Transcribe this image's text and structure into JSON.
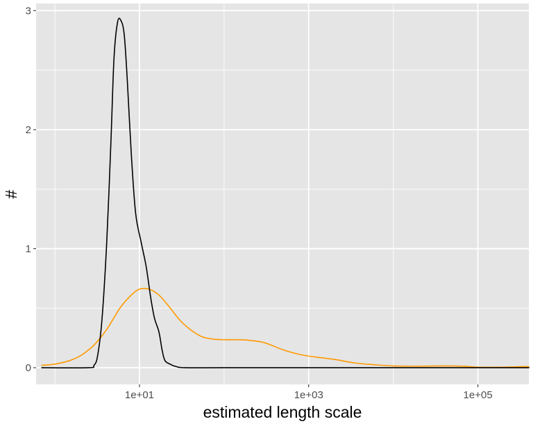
{
  "chart_data": {
    "type": "line",
    "title": "",
    "xlabel": "estimated length scale",
    "ylabel": "#",
    "x_scale": "log10",
    "xlim": [
      0.6,
      400000
    ],
    "ylim": [
      -0.14,
      3.06
    ],
    "x_ticks": [
      {
        "value": 10,
        "label": "1e+01"
      },
      {
        "value": 1000,
        "label": "1e+03"
      },
      {
        "value": 100000,
        "label": "1e+05"
      }
    ],
    "x_minor_ticks": [
      1,
      100,
      10000
    ],
    "y_ticks": [
      {
        "value": 0,
        "label": "0"
      },
      {
        "value": 1,
        "label": "1"
      },
      {
        "value": 2,
        "label": "2"
      },
      {
        "value": 3,
        "label": "3"
      }
    ],
    "y_minor_ticks": [
      0.5,
      1.5,
      2.5
    ],
    "grid": true,
    "legend": "none",
    "colors": {
      "panel_background": "#e5e5e5",
      "grid": "#ffffff",
      "tick_label": "#4d4d4d",
      "axis_title": "#000000"
    },
    "series": [
      {
        "color": "#ff9900",
        "points": [
          [
            0.7,
            0.02
          ],
          [
            1,
            0.03
          ],
          [
            1.5,
            0.06
          ],
          [
            2,
            0.1
          ],
          [
            2.5,
            0.15
          ],
          [
            3,
            0.2
          ],
          [
            4,
            0.31
          ],
          [
            5,
            0.42
          ],
          [
            6,
            0.51
          ],
          [
            8,
            0.61
          ],
          [
            10,
            0.66
          ],
          [
            13,
            0.66
          ],
          [
            17,
            0.61
          ],
          [
            22,
            0.52
          ],
          [
            30,
            0.4
          ],
          [
            40,
            0.32
          ],
          [
            55,
            0.26
          ],
          [
            75,
            0.24
          ],
          [
            100,
            0.235
          ],
          [
            150,
            0.235
          ],
          [
            200,
            0.23
          ],
          [
            300,
            0.21
          ],
          [
            500,
            0.15
          ],
          [
            800,
            0.11
          ],
          [
            1200,
            0.09
          ],
          [
            2000,
            0.07
          ],
          [
            3500,
            0.04
          ],
          [
            6000,
            0.025
          ],
          [
            10000,
            0.015
          ],
          [
            20000,
            0.013
          ],
          [
            40000,
            0.015
          ],
          [
            70000,
            0.012
          ],
          [
            100000,
            0.005
          ],
          [
            200000,
            0.005
          ],
          [
            400000,
            0.01
          ]
        ]
      },
      {
        "color": "#000000",
        "points": [
          [
            0.7,
            0
          ],
          [
            2.5,
            0
          ],
          [
            2.9,
            0.02
          ],
          [
            3.2,
            0.1
          ],
          [
            3.6,
            0.4
          ],
          [
            4.1,
            1.05
          ],
          [
            4.6,
            1.9
          ],
          [
            5.0,
            2.6
          ],
          [
            5.5,
            2.9
          ],
          [
            6.0,
            2.92
          ],
          [
            6.6,
            2.8
          ],
          [
            7.2,
            2.4
          ],
          [
            8.0,
            1.8
          ],
          [
            9.0,
            1.3
          ],
          [
            10.5,
            1.05
          ],
          [
            12.0,
            0.85
          ],
          [
            13.5,
            0.6
          ],
          [
            15.0,
            0.42
          ],
          [
            17.0,
            0.3
          ],
          [
            18.5,
            0.15
          ],
          [
            20.0,
            0.06
          ],
          [
            23.0,
            0.03
          ],
          [
            27.0,
            0.01
          ],
          [
            35.0,
            0
          ],
          [
            100,
            0
          ],
          [
            1000,
            0
          ],
          [
            100000,
            0
          ],
          [
            400000,
            0
          ]
        ]
      }
    ]
  }
}
